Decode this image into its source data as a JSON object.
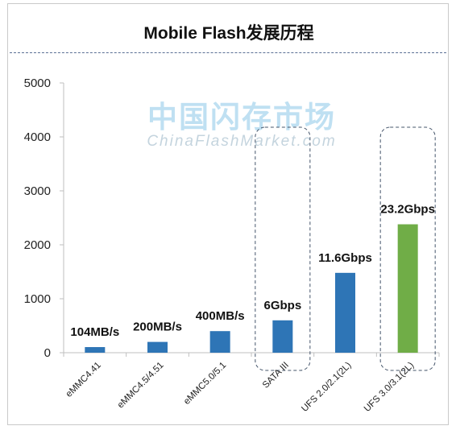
{
  "chart_data": {
    "type": "bar",
    "title": "Mobile Flash发展历程",
    "watermark": {
      "main": "中国闪存市场",
      "sub": "ChinaFlashMarket.com"
    },
    "categories": [
      "eMMC4.41",
      "eMMC4.5/4.51",
      "eMMC5.0/5.1",
      "SATA III",
      "UFS 2.0/2.1(2L)",
      "UFS 3.0/3.1(2L)"
    ],
    "values": [
      104,
      200,
      400,
      600,
      1480,
      2380
    ],
    "data_labels": [
      "104MB/s",
      "200MB/s",
      "400MB/s",
      "6Gbps",
      "11.6Gbps",
      "23.2Gbps"
    ],
    "ylim": [
      0,
      5000
    ],
    "yticks": [
      0,
      1000,
      2000,
      3000,
      4000,
      5000
    ],
    "grid": false,
    "bar_colors": [
      "#2e75b6",
      "#2e75b6",
      "#2e75b6",
      "#2e75b6",
      "#2e75b6",
      "#70ad47"
    ],
    "highlighted_categories": [
      "SATA III",
      "UFS 3.0/3.1(2L)"
    ],
    "highlight_border_color": "#44546a",
    "axis_color": "#bfbfbf"
  }
}
